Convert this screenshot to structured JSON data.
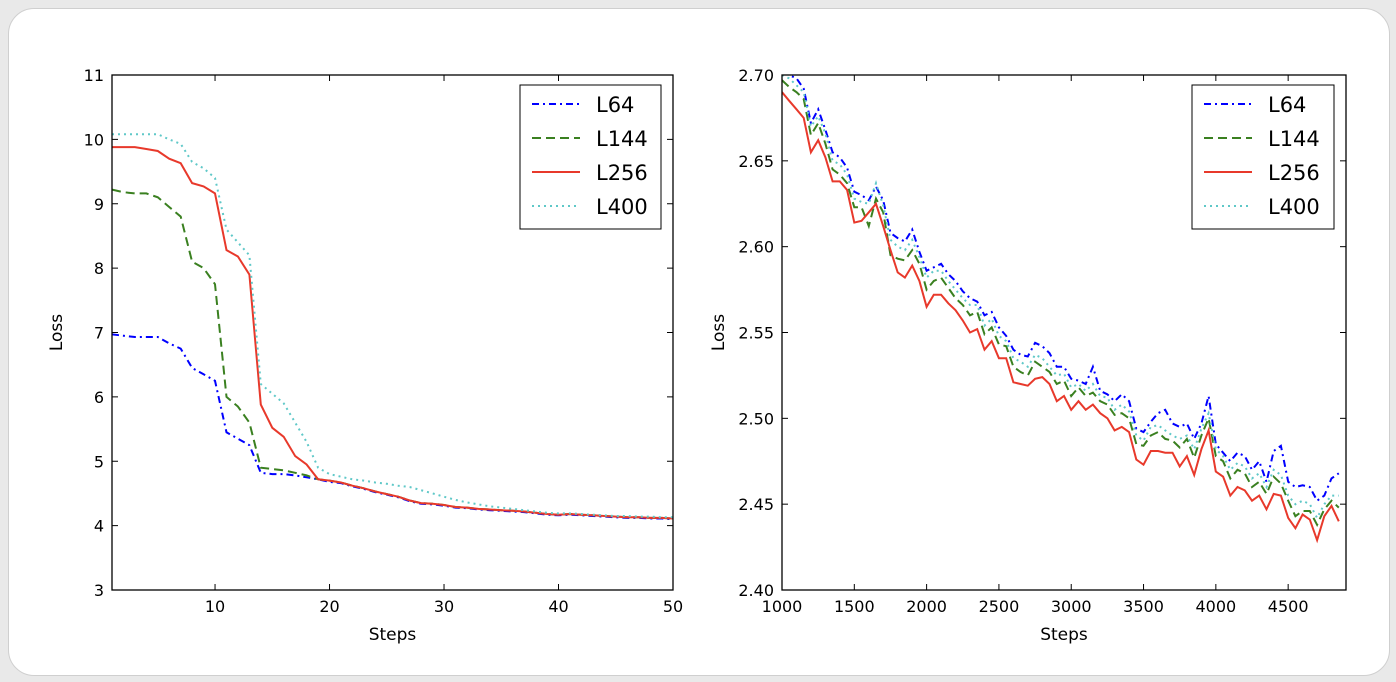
{
  "chart_data": [
    {
      "type": "line",
      "title": "",
      "xlabel": "Steps",
      "ylabel": "Loss",
      "xlim": [
        1,
        50
      ],
      "ylim": [
        3,
        11
      ],
      "xticks": [
        10,
        20,
        30,
        40,
        50
      ],
      "yticks": [
        3,
        4,
        5,
        6,
        7,
        8,
        9,
        10,
        11
      ],
      "grid": false,
      "legend": "top-right",
      "x_start": 1,
      "x_step": 1,
      "series": [
        {
          "name": "L64",
          "color": "#0000ff",
          "style": "dashdot",
          "values": [
            6.97,
            6.95,
            6.93,
            6.93,
            6.93,
            6.83,
            6.75,
            6.45,
            6.35,
            6.25,
            5.45,
            5.35,
            5.25,
            4.82,
            4.8,
            4.8,
            4.78,
            4.75,
            4.72,
            4.68,
            4.66,
            4.61,
            4.57,
            4.52,
            4.48,
            4.44,
            4.38,
            4.34,
            4.33,
            4.31,
            4.28,
            4.27,
            4.25,
            4.24,
            4.23,
            4.22,
            4.21,
            4.19,
            4.17,
            4.16,
            4.17,
            4.16,
            4.15,
            4.14,
            4.13,
            4.12,
            4.12,
            4.11,
            4.11,
            4.1
          ]
        },
        {
          "name": "L144",
          "color": "#3a8020",
          "style": "dashed",
          "values": [
            9.22,
            9.18,
            9.16,
            9.16,
            9.1,
            8.95,
            8.8,
            8.1,
            8.0,
            7.75,
            6.0,
            5.85,
            5.6,
            4.9,
            4.88,
            4.86,
            4.82,
            4.78,
            4.72,
            4.7,
            4.67,
            4.62,
            4.58,
            4.53,
            4.49,
            4.45,
            4.39,
            4.35,
            4.34,
            4.32,
            4.29,
            4.28,
            4.26,
            4.25,
            4.24,
            4.23,
            4.22,
            4.2,
            4.18,
            4.17,
            4.18,
            4.17,
            4.16,
            4.15,
            4.14,
            4.13,
            4.13,
            4.12,
            4.12,
            4.11
          ]
        },
        {
          "name": "L256",
          "color": "#e8392b",
          "style": "solid",
          "values": [
            9.88,
            9.88,
            9.88,
            9.85,
            9.82,
            9.7,
            9.63,
            9.32,
            9.27,
            9.16,
            8.28,
            8.18,
            7.9,
            5.88,
            5.52,
            5.38,
            5.08,
            4.95,
            4.72,
            4.7,
            4.67,
            4.62,
            4.58,
            4.53,
            4.49,
            4.45,
            4.39,
            4.35,
            4.34,
            4.32,
            4.29,
            4.28,
            4.26,
            4.25,
            4.24,
            4.23,
            4.22,
            4.2,
            4.18,
            4.17,
            4.18,
            4.17,
            4.16,
            4.15,
            4.14,
            4.13,
            4.13,
            4.12,
            4.12,
            4.11
          ]
        },
        {
          "name": "L400",
          "color": "#5fc8c8",
          "style": "dotted",
          "values": [
            10.08,
            10.08,
            10.08,
            10.08,
            10.08,
            10.0,
            9.93,
            9.65,
            9.55,
            9.4,
            8.6,
            8.4,
            8.2,
            6.2,
            6.05,
            5.9,
            5.6,
            5.3,
            4.9,
            4.8,
            4.76,
            4.72,
            4.7,
            4.67,
            4.65,
            4.62,
            4.6,
            4.55,
            4.5,
            4.45,
            4.4,
            4.36,
            4.33,
            4.3,
            4.28,
            4.26,
            4.24,
            4.22,
            4.2,
            4.19,
            4.19,
            4.18,
            4.17,
            4.16,
            4.15,
            4.15,
            4.14,
            4.14,
            4.13,
            4.13
          ]
        }
      ]
    },
    {
      "type": "line",
      "title": "",
      "xlabel": "Steps",
      "ylabel": "Loss",
      "xlim": [
        1000,
        4900
      ],
      "ylim": [
        2.4,
        2.7
      ],
      "xticks": [
        1000,
        1500,
        2000,
        2500,
        3000,
        3500,
        4000,
        4500
      ],
      "yticks": [
        2.4,
        2.45,
        2.5,
        2.55,
        2.6,
        2.65,
        2.7
      ],
      "ytick_labels": [
        "2.40",
        "2.45",
        "2.50",
        "2.55",
        "2.60",
        "2.65",
        "2.70"
      ],
      "grid": false,
      "legend": "top-right",
      "x_start": 1000,
      "x_step": 50,
      "series": [
        {
          "name": "L64",
          "color": "#0000ff",
          "style": "dashdot",
          "values": [
            2.702,
            2.7,
            2.698,
            2.692,
            2.672,
            2.68,
            2.668,
            2.655,
            2.652,
            2.646,
            2.632,
            2.63,
            2.627,
            2.635,
            2.627,
            2.608,
            2.605,
            2.603,
            2.61,
            2.597,
            2.586,
            2.588,
            2.59,
            2.584,
            2.58,
            2.574,
            2.57,
            2.568,
            2.56,
            2.562,
            2.553,
            2.548,
            2.54,
            2.537,
            2.536,
            2.544,
            2.542,
            2.538,
            2.53,
            2.53,
            2.523,
            2.522,
            2.52,
            2.53,
            2.516,
            2.514,
            2.51,
            2.514,
            2.51,
            2.494,
            2.492,
            2.498,
            2.503,
            2.505,
            2.497,
            2.495,
            2.497,
            2.488,
            2.497,
            2.513,
            2.485,
            2.48,
            2.475,
            2.48,
            2.478,
            2.47,
            2.475,
            2.463,
            2.481,
            2.484,
            2.463,
            2.46,
            2.461,
            2.46,
            2.452,
            2.455,
            2.465,
            2.468
          ]
        },
        {
          "name": "L144",
          "color": "#3a8020",
          "style": "dashed",
          "values": [
            2.697,
            2.693,
            2.69,
            2.686,
            2.665,
            2.672,
            2.66,
            2.645,
            2.642,
            2.637,
            2.623,
            2.623,
            2.612,
            2.628,
            2.62,
            2.595,
            2.593,
            2.592,
            2.598,
            2.59,
            2.575,
            2.58,
            2.582,
            2.576,
            2.57,
            2.566,
            2.56,
            2.562,
            2.549,
            2.553,
            2.543,
            2.542,
            2.53,
            2.527,
            2.525,
            2.533,
            2.53,
            2.527,
            2.52,
            2.522,
            2.513,
            2.518,
            2.513,
            2.515,
            2.51,
            2.508,
            2.502,
            2.503,
            2.5,
            2.485,
            2.484,
            2.49,
            2.492,
            2.488,
            2.487,
            2.483,
            2.488,
            2.477,
            2.49,
            2.5,
            2.478,
            2.475,
            2.465,
            2.47,
            2.468,
            2.46,
            2.463,
            2.456,
            2.466,
            2.462,
            2.452,
            2.443,
            2.446,
            2.446,
            2.438,
            2.447,
            2.452,
            2.448
          ]
        },
        {
          "name": "L256",
          "color": "#e8392b",
          "style": "solid",
          "values": [
            2.69,
            2.685,
            2.68,
            2.675,
            2.655,
            2.662,
            2.652,
            2.638,
            2.638,
            2.633,
            2.614,
            2.615,
            2.62,
            2.625,
            2.612,
            2.598,
            2.585,
            2.582,
            2.589,
            2.58,
            2.565,
            2.572,
            2.572,
            2.567,
            2.563,
            2.557,
            2.55,
            2.552,
            2.54,
            2.545,
            2.535,
            2.535,
            2.521,
            2.52,
            2.519,
            2.523,
            2.524,
            2.52,
            2.51,
            2.513,
            2.505,
            2.51,
            2.505,
            2.508,
            2.503,
            2.5,
            2.493,
            2.495,
            2.492,
            2.476,
            2.473,
            2.481,
            2.481,
            2.48,
            2.48,
            2.472,
            2.478,
            2.467,
            2.482,
            2.493,
            2.469,
            2.466,
            2.455,
            2.46,
            2.458,
            2.452,
            2.455,
            2.447,
            2.456,
            2.455,
            2.442,
            2.436,
            2.444,
            2.441,
            2.429,
            2.443,
            2.449,
            2.44
          ]
        },
        {
          "name": "L400",
          "color": "#5fc8c8",
          "style": "dotted",
          "values": [
            2.7,
            2.698,
            2.694,
            2.69,
            2.67,
            2.676,
            2.666,
            2.65,
            2.648,
            2.642,
            2.628,
            2.626,
            2.625,
            2.637,
            2.624,
            2.604,
            2.6,
            2.598,
            2.604,
            2.594,
            2.582,
            2.586,
            2.586,
            2.58,
            2.575,
            2.57,
            2.566,
            2.566,
            2.554,
            2.558,
            2.548,
            2.545,
            2.535,
            2.533,
            2.53,
            2.537,
            2.535,
            2.53,
            2.525,
            2.526,
            2.518,
            2.52,
            2.516,
            2.52,
            2.513,
            2.512,
            2.505,
            2.508,
            2.504,
            2.49,
            2.487,
            2.495,
            2.496,
            2.493,
            2.49,
            2.488,
            2.49,
            2.482,
            2.494,
            2.503,
            2.482,
            2.478,
            2.47,
            2.474,
            2.472,
            2.465,
            2.468,
            2.46,
            2.47,
            2.467,
            2.455,
            2.45,
            2.452,
            2.45,
            2.442,
            2.45,
            2.455,
            2.455
          ]
        }
      ]
    }
  ]
}
